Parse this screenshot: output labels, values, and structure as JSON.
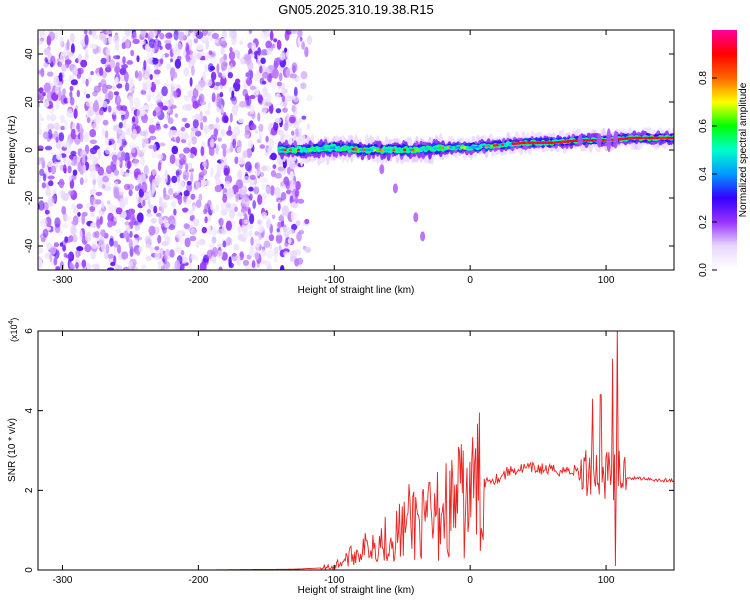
{
  "figure_title": "GN05.2025.310.19.38.R15",
  "chart_data": [
    {
      "type": "heatmap",
      "xlabel": "Height of straight line (km)",
      "ylabel": "Frequency (Hz)",
      "xlim": [
        -318,
        150
      ],
      "ylim": [
        -50,
        50
      ],
      "xticks": [
        -300,
        -200,
        -100,
        0,
        100
      ],
      "yticks": [
        -40,
        -20,
        0,
        20,
        40
      ],
      "colorbar": {
        "label": "Normalized spectral amplitude",
        "range": [
          0,
          1
        ],
        "ticks": [
          "0.0",
          "0.2",
          "0.4",
          "0.6",
          "0.8"
        ],
        "colormap": [
          "#ffffff",
          "#e8d8ff",
          "#9933ff",
          "#3300ff",
          "#0099ff",
          "#00ffcc",
          "#00ff00",
          "#ffff00",
          "#ff6600",
          "#ff0000",
          "#ff0099"
        ]
      },
      "features": {
        "noise_region_x": [
          -318,
          -130
        ],
        "ridge_trace": [
          {
            "x": -140,
            "y": 0
          },
          {
            "x": -120,
            "y": 0
          },
          {
            "x": -100,
            "y": 1
          },
          {
            "x": -80,
            "y": 0
          },
          {
            "x": -60,
            "y": 0
          },
          {
            "x": -40,
            "y": 0
          },
          {
            "x": -20,
            "y": 1
          },
          {
            "x": 0,
            "y": 1
          },
          {
            "x": 20,
            "y": 2
          },
          {
            "x": 40,
            "y": 3
          },
          {
            "x": 60,
            "y": 3
          },
          {
            "x": 80,
            "y": 4
          },
          {
            "x": 100,
            "y": 4
          },
          {
            "x": 120,
            "y": 5
          },
          {
            "x": 150,
            "y": 5
          }
        ],
        "secondary_trace": [
          {
            "x": -65,
            "y": -8
          },
          {
            "x": -55,
            "y": -16
          },
          {
            "x": -40,
            "y": -28
          },
          {
            "x": -35,
            "y": -36
          }
        ]
      }
    },
    {
      "type": "line",
      "xlabel": "Height of straight line (km)",
      "ylabel": "SNR (10 * v/v)",
      "y_multiplier": "(x10",
      "y_multiplier_exp": "4",
      "y_multiplier_close": ")",
      "xlim": [
        -318,
        150
      ],
      "ylim": [
        0,
        6
      ],
      "xticks": [
        -300,
        -200,
        -100,
        0,
        100
      ],
      "yticks": [
        0,
        2,
        4,
        6
      ],
      "series": [
        {
          "color": "#e8221f",
          "x": [
            -318,
            -200,
            -130,
            -110,
            -100,
            -90,
            -80,
            -70,
            -60,
            -50,
            -45,
            -40,
            -35,
            -30,
            -25,
            -20,
            -15,
            -10,
            -5,
            0,
            5,
            10,
            15,
            20,
            30,
            40,
            50,
            60,
            70,
            80,
            85,
            90,
            95,
            100,
            105,
            108,
            110,
            112,
            115,
            120,
            130,
            140,
            150
          ],
          "values": [
            0.0,
            0.0,
            0.02,
            0.05,
            0.1,
            0.3,
            0.5,
            0.7,
            0.8,
            1.0,
            1.2,
            1.3,
            1.1,
            1.0,
            1.3,
            1.6,
            1.5,
            1.8,
            1.7,
            1.9,
            2.1,
            2.2,
            2.3,
            2.3,
            2.5,
            2.55,
            2.55,
            2.5,
            2.5,
            2.5,
            2.4,
            2.6,
            2.4,
            2.5,
            2.3,
            2.1,
            2.5,
            2.4,
            2.35,
            2.3,
            2.3,
            2.25,
            2.25
          ]
        }
      ]
    }
  ]
}
